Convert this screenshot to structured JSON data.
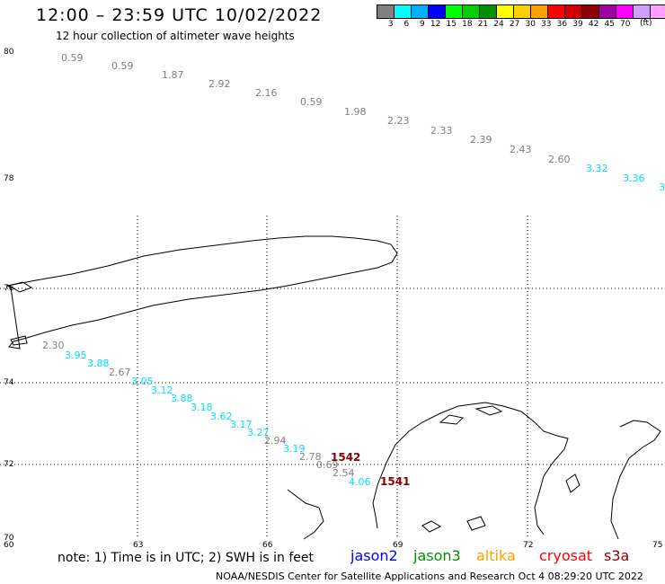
{
  "header": {
    "title": "12:00 – 23:59 UTC 10/02/2022",
    "subtitle": "12 hour collection of altimeter wave heights"
  },
  "colorbar": {
    "colors": [
      "#808080",
      "#00ffff",
      "#00b0ff",
      "#0000ff",
      "#00ff00",
      "#00d000",
      "#009000",
      "#ffff00",
      "#ffd000",
      "#ffa000",
      "#ff0000",
      "#d00000",
      "#900000",
      "#a000a0",
      "#ff00ff",
      "#d0a0ff",
      "#ffa0ff",
      "#000000"
    ],
    "labels": [
      "3",
      "6",
      "9",
      "12",
      "15",
      "18",
      "21",
      "24",
      "27",
      "30",
      "33",
      "36",
      "39",
      "42",
      "45",
      "70"
    ],
    "unit": "(ft)"
  },
  "axes": {
    "lat_labels": [
      {
        "text": "80",
        "id": "lat-80"
      },
      {
        "text": "78",
        "id": "lat-78"
      },
      {
        "text": "76",
        "id": "lat-76"
      },
      {
        "text": "74",
        "id": "lat-74"
      },
      {
        "text": "72",
        "id": "lat-72"
      },
      {
        "text": "70",
        "id": "lat-70"
      }
    ],
    "lon_labels": [
      {
        "text": "60",
        "id": "lon-60"
      },
      {
        "text": "63",
        "id": "lon-63"
      },
      {
        "text": "66",
        "id": "lon-66"
      },
      {
        "text": "69",
        "id": "lon-69"
      },
      {
        "text": "72",
        "id": "lon-72"
      },
      {
        "text": "75",
        "id": "lon-75"
      }
    ]
  },
  "observations": [
    {
      "value": "0.59",
      "color": "#808080"
    },
    {
      "value": "0.59",
      "color": "#808080"
    },
    {
      "value": "1.87",
      "color": "#808080"
    },
    {
      "value": "2.92",
      "color": "#808080"
    },
    {
      "value": "2.16",
      "color": "#808080"
    },
    {
      "value": "0.59",
      "color": "#808080"
    },
    {
      "value": "1.98",
      "color": "#808080"
    },
    {
      "value": "2.23",
      "color": "#808080"
    },
    {
      "value": "2.33",
      "color": "#808080"
    },
    {
      "value": "2.39",
      "color": "#808080"
    },
    {
      "value": "2.43",
      "color": "#808080"
    },
    {
      "value": "2.60",
      "color": "#808080"
    },
    {
      "value": "3.32",
      "color": "#00e0ff"
    },
    {
      "value": "3.36",
      "color": "#00e0ff"
    },
    {
      "value": "3",
      "color": "#00e0ff"
    },
    {
      "value": "2.30",
      "color": "#808080"
    },
    {
      "value": "3.95",
      "color": "#00e0ff"
    },
    {
      "value": "3.88",
      "color": "#00e0ff"
    },
    {
      "value": "2.67",
      "color": "#808080"
    },
    {
      "value": "3.05",
      "color": "#00e0ff"
    },
    {
      "value": "3.12",
      "color": "#00e0ff"
    },
    {
      "value": "3.88",
      "color": "#00e0ff"
    },
    {
      "value": "3.18",
      "color": "#00e0ff"
    },
    {
      "value": "3.62",
      "color": "#00e0ff"
    },
    {
      "value": "3.17",
      "color": "#00e0ff"
    },
    {
      "value": "3.27",
      "color": "#00e0ff"
    },
    {
      "value": "2.94",
      "color": "#808080"
    },
    {
      "value": "3.19",
      "color": "#00e0ff"
    },
    {
      "value": "2.78",
      "color": "#808080"
    },
    {
      "value": "0.69",
      "color": "#808080"
    },
    {
      "value": "2.54",
      "color": "#808080"
    },
    {
      "value": "4.06",
      "color": "#00e0ff"
    },
    {
      "value": "1542",
      "color": "#8b0000"
    },
    {
      "value": "1541",
      "color": "#8b0000"
    }
  ],
  "footer": {
    "note": "note:  1) Time is in UTC;  2) SWH is in feet",
    "satellites": [
      {
        "name": "jason2",
        "color": "#0000ff"
      },
      {
        "name": "jason3",
        "color": "#009000"
      },
      {
        "name": "altika",
        "color": "#ffa000"
      },
      {
        "name": "cryosat",
        "color": "#ff0000"
      },
      {
        "name": "s3a",
        "color": "#8b0000"
      }
    ],
    "credit": "NOAA/NESDIS Center for Satellite Applications and Research    Oct  4 08:29:20 UTC 2022"
  }
}
